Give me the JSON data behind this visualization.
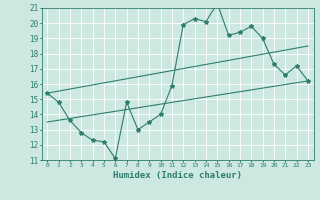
{
  "title": "",
  "xlabel": "Humidex (Indice chaleur)",
  "bg_color": "#cce8e0",
  "grid_color": "#ffffff",
  "line_color": "#2e7d6e",
  "xlim": [
    -0.5,
    23.5
  ],
  "ylim": [
    11,
    21
  ],
  "xticks": [
    0,
    1,
    2,
    3,
    4,
    5,
    6,
    7,
    8,
    9,
    10,
    11,
    12,
    13,
    14,
    15,
    16,
    17,
    18,
    19,
    20,
    21,
    22,
    23
  ],
  "yticks": [
    11,
    12,
    13,
    14,
    15,
    16,
    17,
    18,
    19,
    20,
    21
  ],
  "line1_x": [
    0,
    1,
    2,
    3,
    4,
    5,
    6,
    7,
    8,
    9,
    10,
    11,
    12,
    13,
    14,
    15,
    16,
    17,
    18,
    19,
    20,
    21,
    22,
    23
  ],
  "line1_y": [
    15.4,
    14.8,
    13.6,
    12.8,
    12.3,
    12.2,
    11.1,
    14.8,
    13.0,
    13.5,
    14.0,
    15.9,
    19.9,
    20.3,
    20.1,
    21.3,
    19.2,
    19.4,
    19.8,
    19.0,
    17.3,
    16.6,
    17.2,
    16.2
  ],
  "line2_x": [
    0,
    23
  ],
  "line2_y": [
    15.4,
    18.5
  ],
  "line3_x": [
    0,
    23
  ],
  "line3_y": [
    13.5,
    16.2
  ]
}
